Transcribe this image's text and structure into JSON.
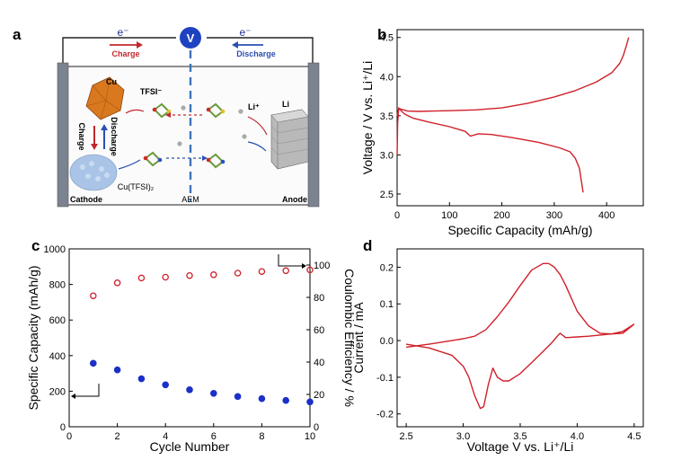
{
  "panels": {
    "a": {
      "label": "a"
    },
    "b": {
      "label": "b"
    },
    "c": {
      "label": "c"
    },
    "d": {
      "label": "d"
    }
  },
  "schematic": {
    "electron_left": "e⁻",
    "electron_right": "e⁻",
    "voltmeter": "V",
    "charge": "Charge",
    "discharge": "Discharge",
    "cu": "Cu",
    "tfsi": "TFSI⁻",
    "li_ion": "Li⁺",
    "li": "Li",
    "charge_vertical": "Charge",
    "discharge_vertical": "Discharge",
    "cu_tfsi": "Cu(TFSI)₂",
    "cathode": "Cathode",
    "aem": "AEM",
    "anode": "Anode",
    "colors": {
      "charge": "#c0282d",
      "discharge": "#2b4fb0",
      "copper": "#d9781e",
      "cu_salt": "#a9c4e6",
      "lithium": "#8c8c8c",
      "electrode": "#7b8290"
    }
  },
  "chart_data": [
    {
      "panel": "b",
      "type": "line",
      "xlabel": "Specific Capacity (mAh/g)",
      "ylabel": "Voltage / V vs. Li⁺/Li",
      "xlim": [
        0,
        470
      ],
      "ylim": [
        2.35,
        4.6
      ],
      "xticks": [
        0,
        100,
        200,
        300,
        400
      ],
      "yticks": [
        2.5,
        3.0,
        3.5,
        4.0,
        4.5
      ],
      "color": "#d0202a",
      "series": [
        {
          "x": [
            0,
            2,
            5,
            10,
            20,
            40,
            70,
            100,
            150,
            200,
            250,
            300,
            340,
            380,
            410,
            425,
            432,
            438,
            442
          ],
          "y": [
            3.5,
            3.57,
            3.59,
            3.58,
            3.56,
            3.555,
            3.56,
            3.565,
            3.575,
            3.6,
            3.66,
            3.74,
            3.82,
            3.93,
            4.05,
            4.17,
            4.27,
            4.4,
            4.5
          ]
        },
        {
          "x": [
            0,
            1,
            3,
            8,
            15,
            30,
            60,
            100,
            130,
            140,
            155,
            180,
            220,
            270,
            310,
            330,
            340,
            348,
            352,
            355
          ],
          "y": [
            3.0,
            3.4,
            3.6,
            3.56,
            3.52,
            3.47,
            3.42,
            3.36,
            3.3,
            3.24,
            3.27,
            3.26,
            3.22,
            3.16,
            3.09,
            3.04,
            2.96,
            2.83,
            2.66,
            2.52
          ]
        }
      ]
    },
    {
      "panel": "c",
      "type": "scatter",
      "xlabel": "Cycle Number",
      "ylabel": "Specific Capacity (mAh/g)",
      "y2label": "Coulombic Efficiency / %",
      "xlim": [
        0,
        10
      ],
      "ylim": [
        0,
        1000
      ],
      "y2lim": [
        0,
        110
      ],
      "xticks": [
        0,
        2,
        4,
        6,
        8,
        10
      ],
      "yticks": [
        0,
        200,
        400,
        600,
        800,
        1000
      ],
      "y2ticks": [
        0,
        20,
        40,
        60,
        80,
        100
      ],
      "x": [
        1,
        2,
        3,
        4,
        5,
        6,
        7,
        8,
        9,
        10
      ],
      "series": [
        {
          "values": [
            357,
            320,
            270,
            236,
            208,
            188,
            170,
            158,
            148,
            140
          ],
          "axis": "left",
          "color": "#1b30c8",
          "marker": "filled-circle"
        },
        {
          "values": [
            81,
            89,
            92,
            92.5,
            93.5,
            94,
            95,
            96,
            96.5,
            97
          ],
          "axis": "right",
          "color": "#d0202a",
          "marker": "open-circle"
        }
      ]
    },
    {
      "panel": "d",
      "type": "line",
      "xlabel": "Voltage V vs. Li⁺/Li",
      "ylabel": "Current / mA",
      "xlim": [
        2.42,
        4.58
      ],
      "ylim": [
        -0.235,
        0.25
      ],
      "xticks": [
        2.5,
        3.0,
        3.5,
        4.0,
        4.5
      ],
      "yticks": [
        -0.2,
        -0.1,
        0.0,
        0.1,
        0.2
      ],
      "color": "#d0202a",
      "series": [
        {
          "x": [
            2.5,
            2.7,
            2.9,
            3.0,
            3.1,
            3.2,
            3.3,
            3.4,
            3.5,
            3.6,
            3.7,
            3.75,
            3.8,
            3.85,
            3.9,
            4.0,
            4.1,
            4.2,
            4.3,
            4.4,
            4.5
          ],
          "y": [
            -0.018,
            -0.01,
            0.0,
            0.005,
            0.012,
            0.03,
            0.065,
            0.105,
            0.15,
            0.192,
            0.21,
            0.21,
            0.2,
            0.18,
            0.15,
            0.08,
            0.04,
            0.02,
            0.018,
            0.02,
            0.045
          ]
        },
        {
          "x": [
            4.5,
            4.4,
            4.3,
            4.2,
            4.1,
            4.0,
            3.9,
            3.85,
            3.82,
            3.78,
            3.7,
            3.6,
            3.5,
            3.4,
            3.35,
            3.3,
            3.26,
            3.22,
            3.18,
            3.15,
            3.1,
            3.05,
            3.0,
            2.9,
            2.8,
            2.7,
            2.6,
            2.5
          ],
          "y": [
            0.045,
            0.025,
            0.018,
            0.015,
            0.012,
            0.01,
            0.008,
            0.02,
            0.01,
            -0.005,
            -0.03,
            -0.06,
            -0.09,
            -0.11,
            -0.11,
            -0.1,
            -0.075,
            -0.12,
            -0.18,
            -0.185,
            -0.15,
            -0.1,
            -0.07,
            -0.04,
            -0.03,
            -0.02,
            -0.015,
            -0.01
          ]
        }
      ]
    }
  ]
}
